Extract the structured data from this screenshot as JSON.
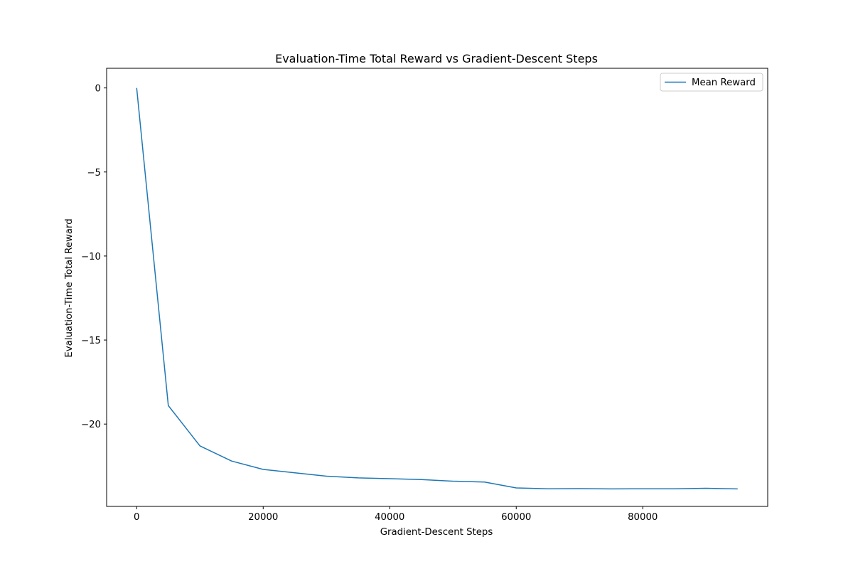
{
  "chart_data": {
    "type": "line",
    "title": "Evaluation-Time Total Reward vs Gradient-Descent Steps",
    "xlabel": "Gradient-Descent Steps",
    "ylabel": "Evaluation-Time Total Reward",
    "xlim": [
      -4750,
      99750
    ],
    "ylim": [
      -24.9,
      1.17
    ],
    "xticks": [
      0,
      20000,
      40000,
      60000,
      80000
    ],
    "xtick_labels": [
      "0",
      "20000",
      "40000",
      "60000",
      "80000"
    ],
    "yticks": [
      0,
      -5,
      -10,
      -15,
      -20
    ],
    "ytick_labels": [
      "0",
      "−5",
      "−10",
      "−15",
      "−20"
    ],
    "grid": false,
    "legend": {
      "placement": "top-right",
      "entries": [
        "Mean Reward"
      ]
    },
    "series": [
      {
        "name": "Mean Reward",
        "color": "#1f77b4",
        "x": [
          0,
          5000,
          10000,
          15000,
          20000,
          25000,
          30000,
          35000,
          40000,
          45000,
          50000,
          55000,
          60000,
          65000,
          70000,
          75000,
          80000,
          85000,
          90000,
          95000
        ],
        "y": [
          0,
          -18.9,
          -21.3,
          -22.2,
          -22.7,
          -22.9,
          -23.1,
          -23.2,
          -23.25,
          -23.3,
          -23.4,
          -23.45,
          -23.8,
          -23.85,
          -23.84,
          -23.86,
          -23.85,
          -23.85,
          -23.82,
          -23.86
        ]
      }
    ]
  }
}
